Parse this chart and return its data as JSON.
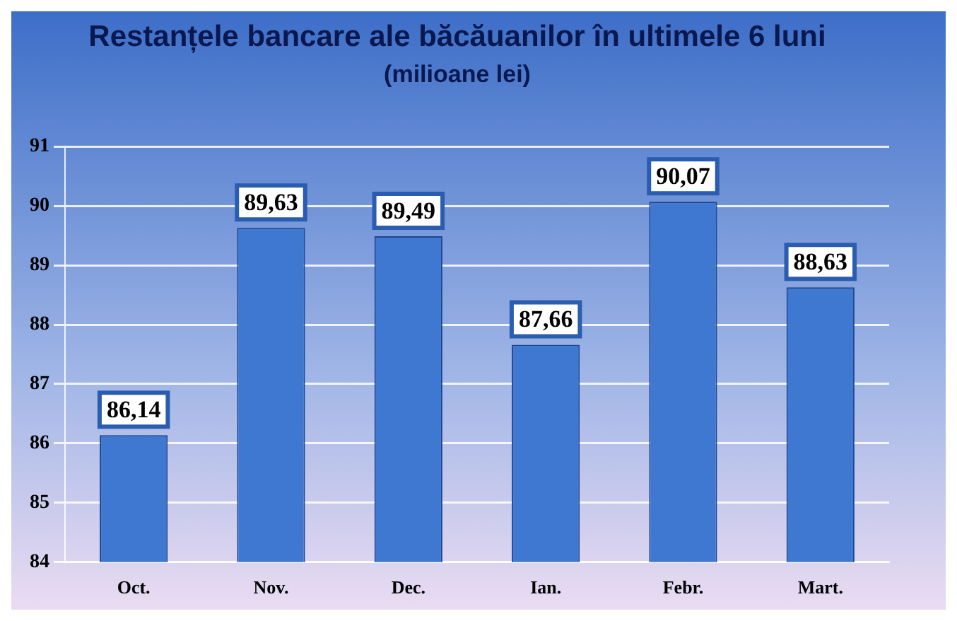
{
  "chart_data": {
    "type": "bar",
    "title": "Restanțele bancare ale băcăuanilor în ultimele 6 luni",
    "subtitle": "(milioane lei)",
    "categories": [
      "Oct.",
      "Nov.",
      "Dec.",
      "Ian.",
      "Febr.",
      "Mart."
    ],
    "values": [
      86.14,
      89.63,
      89.49,
      87.66,
      90.07,
      88.63
    ],
    "value_labels": [
      "86,14",
      "89,63",
      "89,49",
      "87,66",
      "90,07",
      "88,63"
    ],
    "color": "#3f78d0",
    "ylim": [
      84,
      91
    ],
    "yticks": [
      84,
      85,
      86,
      87,
      88,
      89,
      90,
      91
    ],
    "grid": "y",
    "legend": false
  }
}
